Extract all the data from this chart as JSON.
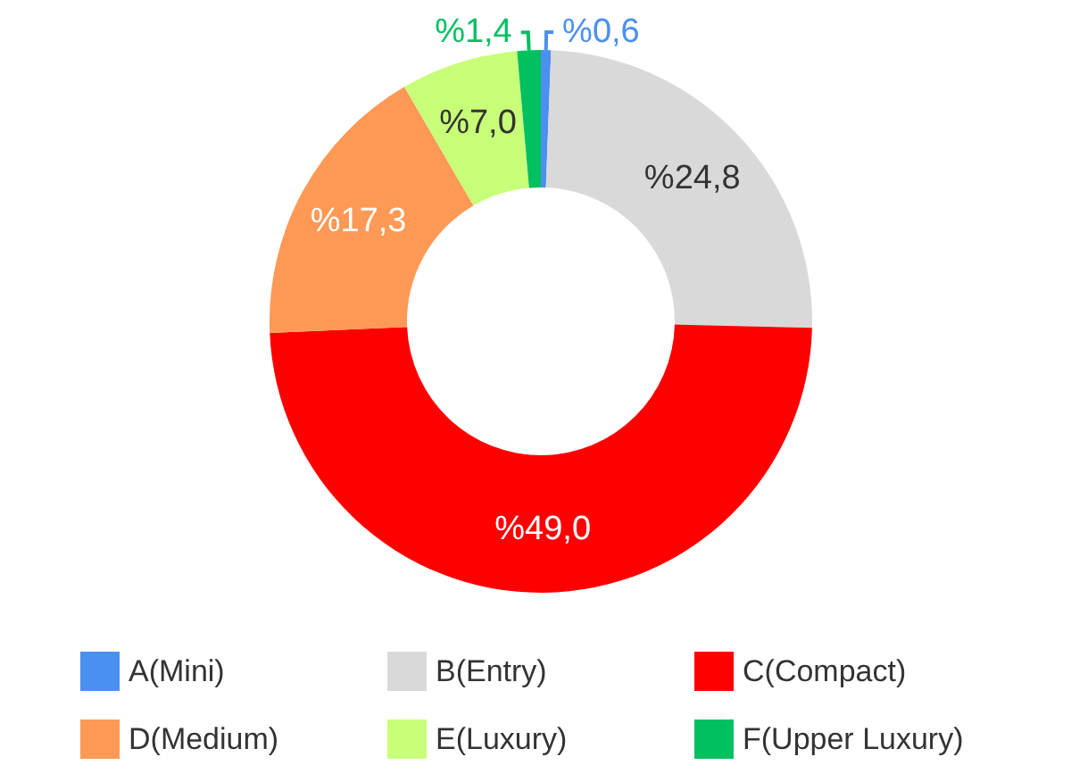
{
  "chart_data": {
    "type": "donut",
    "categories": [
      "A(Mini)",
      "B(Entry)",
      "C(Compact)",
      "D(Medium)",
      "E(Luxury)",
      "F(Upper Luxury)"
    ],
    "values": [
      0.6,
      24.8,
      49.0,
      17.3,
      7.0,
      1.4
    ],
    "value_labels": [
      "%0,6",
      "%24,8",
      "%49,0",
      "%17,3",
      "%7,0",
      "%1,4"
    ],
    "colors": [
      "#4a90f0",
      "#d9d9d9",
      "#ff0000",
      "#ff9955",
      "#c8ff78",
      "#00c060"
    ],
    "legend": "bottom"
  }
}
